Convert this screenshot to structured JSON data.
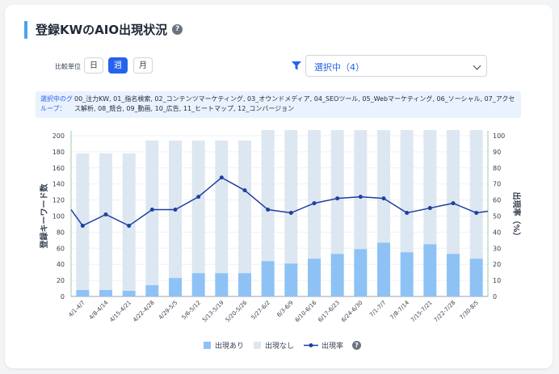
{
  "header": {
    "title": "登録KWのAIO出現状況"
  },
  "controls": {
    "unit_label": "比較単位",
    "units": [
      {
        "label": "日",
        "active": false
      },
      {
        "label": "週",
        "active": true
      },
      {
        "label": "月",
        "active": false
      }
    ],
    "filter_value": "選択中（4）",
    "filter_icon": "filter-icon"
  },
  "groups": {
    "label": "選択中のグループ：",
    "text": "00_注力KW, 01_指名検索, 02_コンテンツマーケティング, 03_オウンドメディア, 04_SEOツール, 05_Webマーケティング, 06_ソーシャル, 07_アクセス解析, 08_競合, 09_動画, 10_広告, 11_ヒートマップ, 12_コンバージョン"
  },
  "colors": {
    "appear": "#8ec2f5",
    "no_appear": "#dde7f1",
    "rate": "#1f3fa0",
    "accent": "#2563eb"
  },
  "chart_data": {
    "type": "bar",
    "stacked": true,
    "categories": [
      "4/1-4/7",
      "4/8-4/14",
      "4/15-4/21",
      "4/22-4/28",
      "4/29-5/5",
      "5/6-5/12",
      "5/13-5/19",
      "5/20-5/26",
      "5/27-6/2",
      "6/3-6/9",
      "6/10-6/16",
      "6/17-6/23",
      "6/24-6/30",
      "7/1-7/7",
      "7/8-7/14",
      "7/15-7/21",
      "7/22-7/28",
      "7/30-8/5"
    ],
    "series": [
      {
        "name": "出現あり",
        "type": "bar",
        "axis": "left",
        "values": [
          8,
          8,
          7,
          14,
          23,
          29,
          29,
          29,
          44,
          41,
          47,
          53,
          59,
          67,
          55,
          65,
          53,
          47
        ]
      },
      {
        "name": "出現なし",
        "type": "bar",
        "axis": "left",
        "values": [
          170,
          170,
          171,
          180,
          171,
          165,
          165,
          165,
          163,
          166,
          160,
          154,
          148,
          140,
          152,
          142,
          154,
          160
        ]
      },
      {
        "name": "出現率",
        "type": "line",
        "axis": "right",
        "values": [
          44,
          51,
          44,
          54,
          54,
          62,
          74,
          66,
          54,
          52,
          58,
          61,
          62,
          61,
          52,
          55,
          58,
          52
        ]
      }
    ],
    "xlabel": "",
    "ylabel": "登録キーワード数",
    "y2label": "出現率（%）",
    "ylim": [
      0,
      200
    ],
    "y2lim": [
      0,
      100
    ],
    "yticks": [
      0,
      20,
      40,
      60,
      80,
      100,
      120,
      140,
      160,
      180,
      200
    ],
    "y2ticks": [
      0,
      10,
      20,
      30,
      40,
      50,
      60,
      70,
      80,
      90,
      100
    ],
    "grid": true,
    "legend": "bottom",
    "legend_help": "?"
  }
}
